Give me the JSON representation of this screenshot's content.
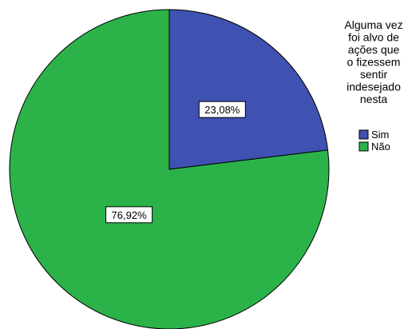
{
  "chart_data": {
    "type": "pie",
    "legend_title": "Alguma vez foi alvo de ações que o fizessem sentir indesejado nesta",
    "legend_title_lines": [
      "Alguma vez",
      "foi alvo de",
      "ações que",
      "o fizessem",
      "sentir",
      "indesejado",
      "nesta"
    ],
    "legend_position": "right",
    "slices": [
      {
        "label": "Sim",
        "value": 23.08,
        "display": "23,08%",
        "color": "#3f51b1"
      },
      {
        "label": "Não",
        "value": 76.92,
        "display": "76,92%",
        "color": "#2bb34a"
      }
    ]
  }
}
